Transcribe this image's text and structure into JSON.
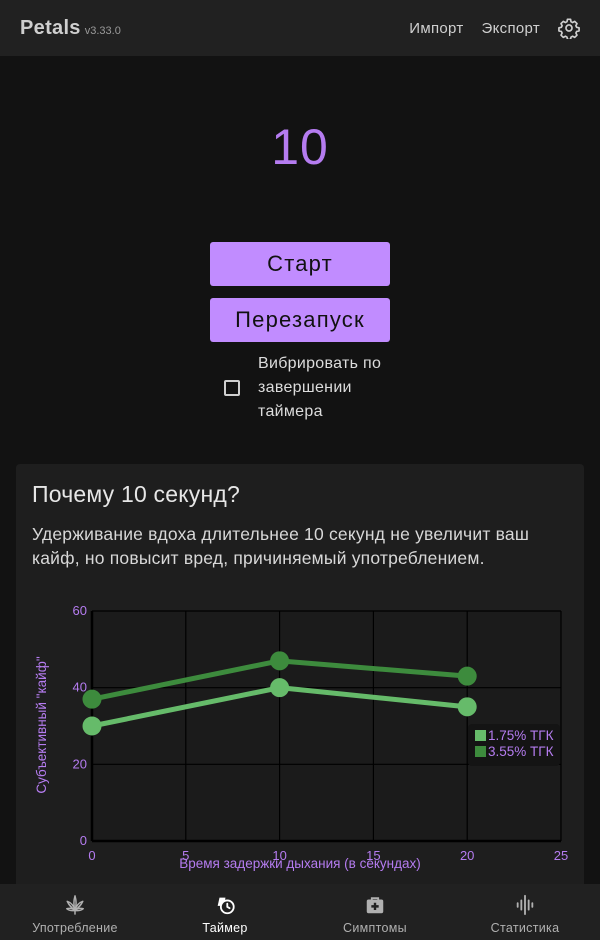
{
  "app": {
    "name": "Petals",
    "version": "v3.33.0"
  },
  "header": {
    "import_label": "Импорт",
    "export_label": "Экспорт",
    "settings_icon": "gear-icon"
  },
  "timer": {
    "value": "10",
    "start_label": "Старт",
    "restart_label": "Перезапуск",
    "vibrate_label": "Вибрировать по завершении таймера",
    "vibrate_checked": false
  },
  "card": {
    "title": "Почему 10 секунд?",
    "text": "Удерживание вдоха длительнее 10 секунд не увеличит ваш кайф, но повысит вред, причиняемый употреблением."
  },
  "chart_data": {
    "type": "line",
    "xlabel": "Время задержки дыхания (в секундах)",
    "ylabel": "Субъективный \"кайф\"",
    "xlim": [
      0,
      25
    ],
    "ylim": [
      0,
      60
    ],
    "xticks": [
      "0",
      "5",
      "10",
      "15",
      "20",
      "25"
    ],
    "yticks": [
      "0",
      "20",
      "40",
      "60"
    ],
    "grid": true,
    "legend_position": "right",
    "x": [
      0,
      10,
      20
    ],
    "series": [
      {
        "name": "1.75% ТГК",
        "color": "#66bb6a",
        "values": [
          30,
          40,
          35
        ]
      },
      {
        "name": "3.55% ТГК",
        "color": "#3d8b3d",
        "values": [
          37,
          47,
          43
        ]
      }
    ]
  },
  "colors": {
    "accent": "#c18cff",
    "accent_text": "#b57cf0",
    "background": "#121212",
    "surface": "#1e1e1e",
    "bar": "#212121"
  },
  "nav": {
    "items": [
      {
        "label": "Употребление",
        "icon": "cannabis-leaf-icon",
        "active": false
      },
      {
        "label": "Таймер",
        "icon": "timer-clock-icon",
        "active": true
      },
      {
        "label": "Симптомы",
        "icon": "medical-kit-icon",
        "active": false
      },
      {
        "label": "Статистика",
        "icon": "audio-wave-icon",
        "active": false
      }
    ]
  }
}
